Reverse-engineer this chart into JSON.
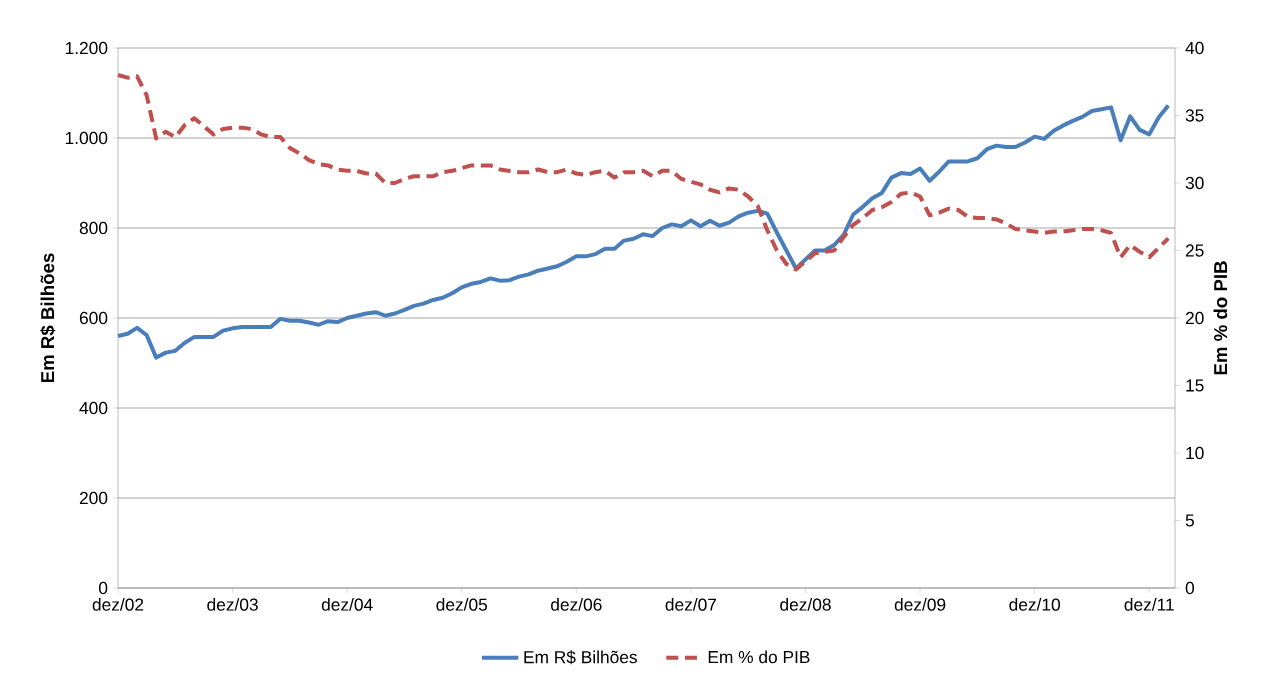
{
  "chart_data": {
    "type": "line",
    "categories": [
      "dez/02",
      null,
      null,
      null,
      null,
      null,
      null,
      null,
      null,
      null,
      null,
      null,
      "dez/03",
      null,
      null,
      null,
      null,
      null,
      null,
      null,
      null,
      null,
      null,
      null,
      "dez/04",
      null,
      null,
      null,
      null,
      null,
      null,
      null,
      null,
      null,
      null,
      null,
      "dez/05",
      null,
      null,
      null,
      null,
      null,
      null,
      null,
      null,
      null,
      null,
      null,
      "dez/06",
      null,
      null,
      null,
      null,
      null,
      null,
      null,
      null,
      null,
      null,
      null,
      "dez/07",
      null,
      null,
      null,
      null,
      null,
      null,
      null,
      null,
      null,
      null,
      null,
      "dez/08",
      null,
      null,
      null,
      null,
      null,
      null,
      null,
      null,
      null,
      null,
      null,
      "dez/09",
      null,
      null,
      null,
      null,
      null,
      null,
      null,
      null,
      null,
      null,
      null,
      "dez/10",
      null,
      null,
      null,
      null,
      null,
      null,
      null,
      null,
      null,
      null,
      null,
      "dez/11",
      null,
      null
    ],
    "series": [
      {
        "name": "Em R$ Bilhões",
        "color": "#4a7ebb",
        "line_style": "solid",
        "values": [
          560,
          565,
          578,
          562,
          512,
          523,
          527,
          545,
          558,
          558,
          558,
          572,
          577,
          580,
          580,
          580,
          580,
          598,
          594,
          594,
          590,
          585,
          593,
          591,
          600,
          605,
          610,
          613,
          605,
          610,
          618,
          627,
          632,
          640,
          645,
          655,
          668,
          676,
          680,
          688,
          683,
          684,
          692,
          697,
          705,
          710,
          715,
          725,
          737,
          737,
          742,
          754,
          754,
          772,
          776,
          786,
          782,
          800,
          808,
          804,
          817,
          804,
          816,
          805,
          812,
          826,
          834,
          838,
          832,
          790,
          750,
          710,
          730,
          750,
          750,
          762,
          785,
          830,
          847,
          866,
          878,
          912,
          922,
          920,
          932,
          905,
          925,
          948,
          948,
          948,
          955,
          975,
          983,
          980,
          980,
          990,
          1003,
          998,
          1016,
          1028,
          1038,
          1047,
          1060,
          1064,
          1068,
          995,
          1048,
          1018,
          1008,
          1046,
          1072
        ]
      },
      {
        "name": "Em % do PIB",
        "color": "#c0504d",
        "line_style": "dashed",
        "axis": "y2",
        "values": [
          38.0,
          37.8,
          37.9,
          36.5,
          33.3,
          33.8,
          33.4,
          34.3,
          34.8,
          34.2,
          33.6,
          34.0,
          34.1,
          34.1,
          34.0,
          33.6,
          33.4,
          33.4,
          32.6,
          32.2,
          31.7,
          31.4,
          31.3,
          31.0,
          30.9,
          30.9,
          30.7,
          30.7,
          30.0,
          30.0,
          30.3,
          30.5,
          30.5,
          30.5,
          30.8,
          30.9,
          31.1,
          31.3,
          31.3,
          31.3,
          31.0,
          30.9,
          30.8,
          30.8,
          31.0,
          30.8,
          30.8,
          31.0,
          30.7,
          30.6,
          30.8,
          30.9,
          30.4,
          30.8,
          30.8,
          30.9,
          30.5,
          30.9,
          30.9,
          30.3,
          30.1,
          29.9,
          29.5,
          29.3,
          29.6,
          29.5,
          29.0,
          28.3,
          26.5,
          25.0,
          24.0,
          23.6,
          24.2,
          24.8,
          24.9,
          25.0,
          26.0,
          26.9,
          27.4,
          28.0,
          28.2,
          28.6,
          29.2,
          29.3,
          29.0,
          27.6,
          27.8,
          28.1,
          28.0,
          27.5,
          27.4,
          27.4,
          27.3,
          27.0,
          26.6,
          26.5,
          26.4,
          26.3,
          26.4,
          26.4,
          26.5,
          26.6,
          26.6,
          26.5,
          26.3,
          24.5,
          25.4,
          24.9,
          24.5,
          25.2,
          25.9
        ]
      }
    ],
    "ylabel": "Em R$ Bilhões",
    "y2label": "Em % do PIB",
    "ylim": [
      0,
      1200
    ],
    "yticks": [
      0,
      200,
      400,
      600,
      800,
      {
        "value": 1000,
        "label": "1.000"
      },
      {
        "value": 1200,
        "label": "1.200"
      }
    ],
    "y2lim": [
      0,
      40
    ],
    "y2ticks": [
      0,
      5,
      10,
      15,
      20,
      25,
      30,
      35,
      40
    ],
    "grid": "y",
    "legend": "bottom"
  }
}
